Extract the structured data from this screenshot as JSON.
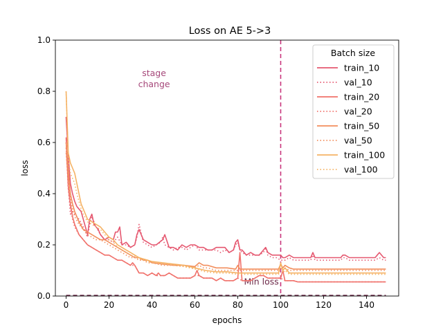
{
  "chart_data": {
    "type": "line",
    "title": "Loss on AE 5->3",
    "xlabel": "epochs",
    "ylabel": "loss",
    "xlim": [
      -5,
      155
    ],
    "ylim": [
      0,
      1.0
    ],
    "xticks": [
      0,
      20,
      40,
      60,
      80,
      100,
      120,
      140
    ],
    "yticks": [
      0.0,
      0.2,
      0.4,
      0.6,
      0.8,
      1.0
    ],
    "grid": false,
    "legend": {
      "title": "Batch size",
      "placement": "top-right"
    },
    "annotations": [
      {
        "text_lines": [
          "stage",
          "change"
        ],
        "x": 41,
        "y": 0.86,
        "color": "#a6487a"
      },
      {
        "text": "Min loss",
        "x": 91,
        "y": 0.045,
        "color": "#6e2b4a"
      }
    ],
    "vlines": [
      {
        "x": 100,
        "color": "#c8347b",
        "style": "dashed"
      }
    ],
    "hlines": [
      {
        "y": 0.0,
        "color": "#6e2b4a",
        "style": "dashed",
        "x_range": [
          0,
          149
        ]
      }
    ],
    "series": [
      {
        "name": "train_10",
        "color": "#e5576f",
        "style": "solid",
        "x": [
          0,
          1,
          2,
          3,
          4,
          5,
          6,
          7,
          8,
          9,
          10,
          11,
          12,
          13,
          14,
          15,
          16,
          18,
          20,
          22,
          23,
          24,
          25,
          26,
          28,
          30,
          32,
          33,
          34,
          36,
          38,
          40,
          42,
          45,
          46,
          48,
          50,
          52,
          54,
          56,
          58,
          60,
          62,
          64,
          66,
          68,
          70,
          72,
          74,
          76,
          78,
          79,
          80,
          81,
          82,
          84,
          86,
          88,
          90,
          92,
          93,
          94,
          96,
          98,
          100,
          101,
          102,
          104,
          106,
          108,
          110,
          112,
          114,
          115,
          116,
          118,
          120,
          122,
          124,
          126,
          128,
          129,
          130,
          132,
          134,
          136,
          138,
          140,
          142,
          144,
          145,
          146,
          148,
          149
        ],
        "y": [
          0.7,
          0.55,
          0.44,
          0.4,
          0.37,
          0.35,
          0.34,
          0.33,
          0.3,
          0.27,
          0.24,
          0.3,
          0.32,
          0.28,
          0.27,
          0.26,
          0.24,
          0.22,
          0.23,
          0.22,
          0.25,
          0.25,
          0.27,
          0.2,
          0.21,
          0.19,
          0.2,
          0.24,
          0.26,
          0.22,
          0.21,
          0.2,
          0.2,
          0.22,
          0.24,
          0.19,
          0.19,
          0.18,
          0.2,
          0.19,
          0.2,
          0.2,
          0.19,
          0.19,
          0.18,
          0.18,
          0.19,
          0.19,
          0.19,
          0.17,
          0.18,
          0.21,
          0.22,
          0.18,
          0.18,
          0.16,
          0.17,
          0.16,
          0.16,
          0.18,
          0.19,
          0.17,
          0.16,
          0.16,
          0.16,
          0.15,
          0.15,
          0.16,
          0.15,
          0.15,
          0.15,
          0.15,
          0.15,
          0.17,
          0.15,
          0.15,
          0.15,
          0.15,
          0.15,
          0.15,
          0.15,
          0.16,
          0.16,
          0.15,
          0.15,
          0.15,
          0.15,
          0.15,
          0.15,
          0.15,
          0.16,
          0.17,
          0.15,
          0.15
        ]
      },
      {
        "name": "val_10",
        "color": "#e5576f",
        "style": "dotted",
        "x": [
          0,
          1,
          2,
          3,
          4,
          5,
          6,
          8,
          10,
          11,
          12,
          14,
          16,
          18,
          20,
          22,
          24,
          26,
          28,
          30,
          32,
          33,
          34,
          36,
          38,
          40,
          42,
          44,
          45,
          46,
          48,
          50,
          52,
          54,
          56,
          58,
          60,
          62,
          64,
          66,
          68,
          70,
          72,
          74,
          76,
          78,
          79,
          80,
          81,
          82,
          84,
          86,
          88,
          90,
          92,
          93,
          94,
          96,
          98,
          100,
          101,
          102,
          104,
          106,
          108,
          110,
          112,
          114,
          115,
          116,
          118,
          120,
          122,
          124,
          126,
          128,
          129,
          130,
          132,
          134,
          136,
          138,
          140,
          142,
          144,
          146,
          148,
          149
        ],
        "y": [
          0.6,
          0.43,
          0.32,
          0.33,
          0.32,
          0.31,
          0.3,
          0.27,
          0.23,
          0.28,
          0.31,
          0.27,
          0.24,
          0.22,
          0.22,
          0.21,
          0.23,
          0.2,
          0.2,
          0.19,
          0.2,
          0.23,
          0.28,
          0.21,
          0.2,
          0.19,
          0.2,
          0.21,
          0.23,
          0.2,
          0.19,
          0.18,
          0.19,
          0.19,
          0.18,
          0.19,
          0.2,
          0.18,
          0.18,
          0.18,
          0.18,
          0.18,
          0.17,
          0.18,
          0.17,
          0.18,
          0.2,
          0.21,
          0.18,
          0.17,
          0.16,
          0.16,
          0.16,
          0.16,
          0.17,
          0.19,
          0.16,
          0.15,
          0.15,
          0.14,
          0.14,
          0.14,
          0.15,
          0.14,
          0.14,
          0.14,
          0.14,
          0.14,
          0.16,
          0.14,
          0.14,
          0.14,
          0.14,
          0.14,
          0.14,
          0.14,
          0.15,
          0.15,
          0.14,
          0.14,
          0.14,
          0.14,
          0.14,
          0.14,
          0.14,
          0.15,
          0.14,
          0.14
        ]
      },
      {
        "name": "train_20",
        "color": "#f0706a",
        "style": "solid",
        "x": [
          0,
          1,
          2,
          3,
          4,
          6,
          8,
          10,
          12,
          14,
          16,
          18,
          20,
          22,
          24,
          26,
          28,
          30,
          31,
          32,
          34,
          36,
          38,
          40,
          42,
          43,
          44,
          46,
          48,
          50,
          52,
          54,
          56,
          58,
          60,
          61,
          62,
          64,
          66,
          68,
          70,
          72,
          74,
          76,
          78,
          80,
          81,
          82,
          84,
          86,
          88,
          90,
          92,
          94,
          96,
          98,
          100,
          101,
          102,
          104,
          106,
          108,
          110,
          120,
          130,
          140,
          149
        ],
        "y": [
          0.62,
          0.43,
          0.36,
          0.31,
          0.28,
          0.24,
          0.22,
          0.2,
          0.19,
          0.18,
          0.17,
          0.16,
          0.16,
          0.15,
          0.14,
          0.14,
          0.13,
          0.12,
          0.13,
          0.12,
          0.09,
          0.09,
          0.08,
          0.09,
          0.08,
          0.09,
          0.08,
          0.08,
          0.09,
          0.08,
          0.07,
          0.07,
          0.07,
          0.07,
          0.08,
          0.1,
          0.08,
          0.07,
          0.07,
          0.07,
          0.06,
          0.07,
          0.06,
          0.06,
          0.06,
          0.07,
          0.17,
          0.06,
          0.06,
          0.06,
          0.07,
          0.08,
          0.08,
          0.07,
          0.07,
          0.07,
          0.07,
          0.1,
          0.06,
          0.06,
          0.06,
          0.055,
          0.055,
          0.055,
          0.055,
          0.055,
          0.055
        ]
      },
      {
        "name": "val_20",
        "color": "#f0706a",
        "style": "dotted",
        "x": [
          0,
          1,
          2,
          3,
          4,
          6,
          8,
          10,
          12,
          14,
          16,
          18,
          20,
          22,
          24,
          26,
          28,
          30,
          32,
          34,
          36,
          38,
          40,
          42,
          44,
          46,
          48,
          50,
          52,
          54,
          56,
          58,
          60,
          62,
          64,
          66,
          68,
          70,
          72,
          74,
          76,
          78,
          80,
          82,
          84,
          86,
          88,
          90,
          92,
          94,
          96,
          98,
          100,
          102,
          104,
          106,
          108,
          110,
          120,
          130,
          140,
          149
        ],
        "y": [
          0.58,
          0.42,
          0.35,
          0.3,
          0.27,
          0.24,
          0.22,
          0.2,
          0.19,
          0.18,
          0.17,
          0.16,
          0.16,
          0.15,
          0.14,
          0.14,
          0.13,
          0.12,
          0.12,
          0.09,
          0.09,
          0.08,
          0.09,
          0.08,
          0.08,
          0.08,
          0.09,
          0.08,
          0.07,
          0.07,
          0.07,
          0.07,
          0.08,
          0.08,
          0.07,
          0.07,
          0.07,
          0.06,
          0.07,
          0.06,
          0.06,
          0.06,
          0.07,
          0.06,
          0.06,
          0.06,
          0.07,
          0.08,
          0.08,
          0.07,
          0.07,
          0.07,
          0.07,
          0.06,
          0.06,
          0.06,
          0.055,
          0.055,
          0.055,
          0.055,
          0.055,
          0.055
        ]
      },
      {
        "name": "train_50",
        "color": "#f28d5c",
        "style": "solid",
        "x": [
          0,
          1,
          2,
          3,
          4,
          6,
          8,
          10,
          12,
          14,
          16,
          18,
          20,
          22,
          24,
          26,
          28,
          30,
          32,
          34,
          36,
          38,
          40,
          45,
          50,
          55,
          60,
          62,
          64,
          66,
          70,
          75,
          79,
          80,
          81,
          85,
          90,
          95,
          99,
          100,
          101,
          102,
          104,
          106,
          110,
          120,
          130,
          140,
          149
        ],
        "y": [
          0.6,
          0.49,
          0.4,
          0.36,
          0.33,
          0.29,
          0.26,
          0.25,
          0.24,
          0.23,
          0.22,
          0.22,
          0.21,
          0.2,
          0.19,
          0.18,
          0.17,
          0.16,
          0.15,
          0.15,
          0.14,
          0.14,
          0.13,
          0.125,
          0.12,
          0.12,
          0.115,
          0.13,
          0.12,
          0.12,
          0.11,
          0.11,
          0.105,
          0.12,
          0.105,
          0.105,
          0.105,
          0.105,
          0.105,
          0.125,
          0.11,
          0.12,
          0.11,
          0.105,
          0.105,
          0.105,
          0.105,
          0.105,
          0.105
        ]
      },
      {
        "name": "val_50",
        "color": "#f28d5c",
        "style": "dotted",
        "x": [
          0,
          1,
          2,
          3,
          4,
          6,
          8,
          10,
          12,
          14,
          16,
          18,
          20,
          22,
          24,
          26,
          28,
          30,
          32,
          34,
          36,
          38,
          40,
          45,
          50,
          55,
          60,
          62,
          64,
          66,
          70,
          75,
          80,
          85,
          90,
          95,
          99,
          100,
          101,
          102,
          104,
          106,
          110,
          120,
          130,
          140,
          149
        ],
        "y": [
          0.56,
          0.46,
          0.38,
          0.34,
          0.31,
          0.28,
          0.26,
          0.24,
          0.23,
          0.22,
          0.22,
          0.21,
          0.2,
          0.19,
          0.18,
          0.17,
          0.16,
          0.15,
          0.15,
          0.14,
          0.14,
          0.13,
          0.13,
          0.12,
          0.12,
          0.115,
          0.11,
          0.12,
          0.11,
          0.11,
          0.1,
          0.1,
          0.1,
          0.1,
          0.1,
          0.1,
          0.1,
          0.12,
          0.1,
          0.11,
          0.1,
          0.1,
          0.1,
          0.1,
          0.1,
          0.1,
          0.1
        ]
      },
      {
        "name": "train_100",
        "color": "#f5b264",
        "style": "solid",
        "x": [
          0,
          1,
          2,
          3,
          4,
          5,
          6,
          7,
          8,
          10,
          12,
          14,
          16,
          18,
          20,
          22,
          24,
          26,
          28,
          30,
          32,
          34,
          36,
          38,
          40,
          45,
          50,
          55,
          60,
          65,
          70,
          75,
          80,
          85,
          90,
          95,
          99,
          100,
          101,
          102,
          104,
          106,
          110,
          115,
          120,
          130,
          140,
          149
        ],
        "y": [
          0.8,
          0.56,
          0.52,
          0.5,
          0.48,
          0.44,
          0.4,
          0.36,
          0.34,
          0.3,
          0.29,
          0.28,
          0.27,
          0.25,
          0.23,
          0.22,
          0.2,
          0.19,
          0.18,
          0.17,
          0.16,
          0.15,
          0.145,
          0.14,
          0.135,
          0.13,
          0.125,
          0.12,
          0.11,
          0.1,
          0.095,
          0.095,
          0.09,
          0.09,
          0.09,
          0.09,
          0.09,
          0.13,
          0.1,
          0.11,
          0.09,
          0.09,
          0.09,
          0.09,
          0.09,
          0.09,
          0.09,
          0.09
        ]
      },
      {
        "name": "val_100",
        "color": "#f5b264",
        "style": "dotted",
        "x": [
          0,
          1,
          2,
          3,
          4,
          5,
          6,
          7,
          8,
          10,
          12,
          14,
          16,
          18,
          20,
          22,
          24,
          26,
          28,
          30,
          32,
          34,
          36,
          38,
          40,
          45,
          50,
          55,
          60,
          65,
          70,
          75,
          80,
          85,
          90,
          95,
          99,
          100,
          101,
          102,
          104,
          106,
          110,
          115,
          120,
          130,
          140,
          149
        ],
        "y": [
          0.8,
          0.54,
          0.48,
          0.46,
          0.44,
          0.4,
          0.37,
          0.34,
          0.32,
          0.29,
          0.28,
          0.27,
          0.26,
          0.24,
          0.22,
          0.21,
          0.19,
          0.18,
          0.17,
          0.16,
          0.155,
          0.145,
          0.14,
          0.135,
          0.13,
          0.125,
          0.12,
          0.115,
          0.105,
          0.095,
          0.09,
          0.09,
          0.085,
          0.085,
          0.085,
          0.085,
          0.085,
          0.12,
          0.09,
          0.1,
          0.085,
          0.085,
          0.085,
          0.085,
          0.085,
          0.085,
          0.085,
          0.085
        ]
      }
    ]
  }
}
